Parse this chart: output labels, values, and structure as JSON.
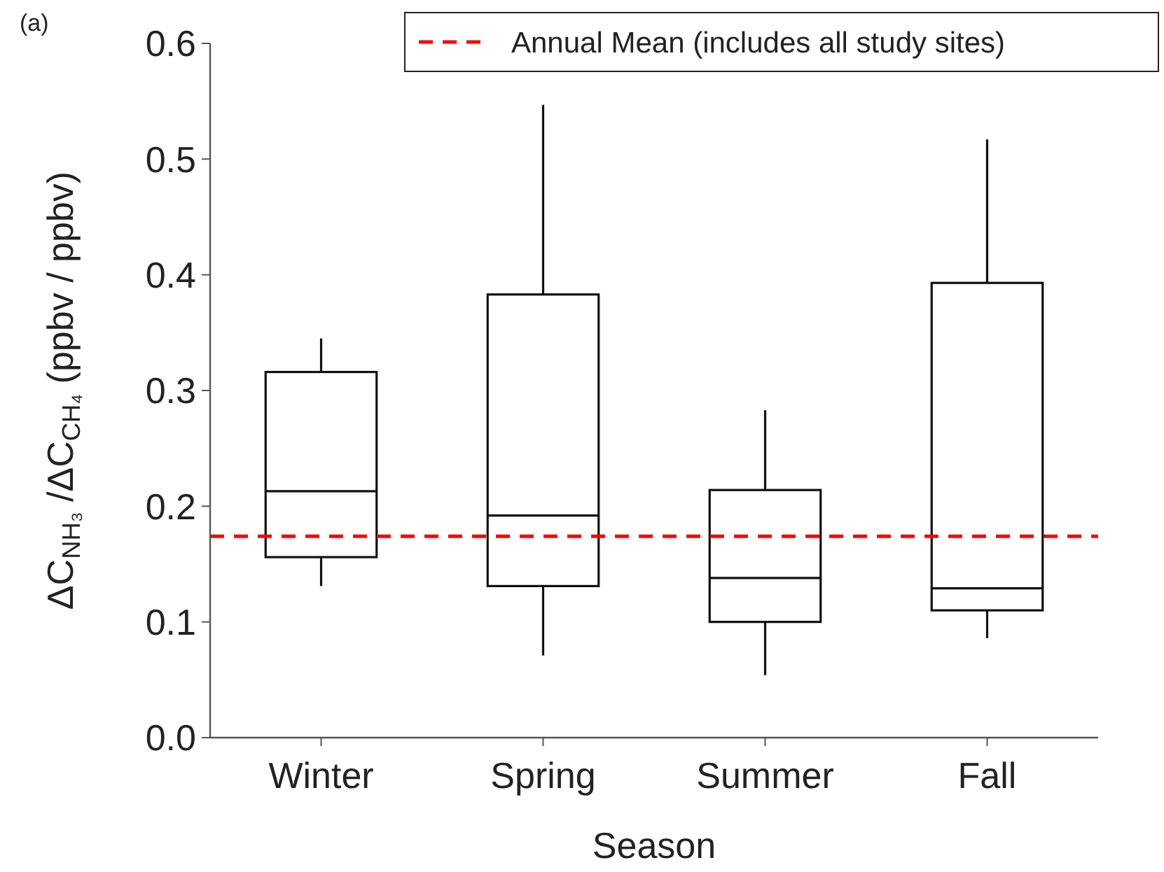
{
  "chart_data": {
    "type": "box",
    "xlabel": "Season",
    "ylabel": "ΔC$_{NH₃}$ /ΔC$_{CH₄}$ (ppbv / ppbv)",
    "annotations": [
      "(a)"
    ],
    "categories": [
      "Winter",
      "Spring",
      "Summer",
      "Fall"
    ],
    "boxes": [
      {
        "low": 0.131,
        "q1": 0.156,
        "median": 0.213,
        "q3": 0.316,
        "high": 0.345
      },
      {
        "low": 0.071,
        "q1": 0.131,
        "median": 0.192,
        "q3": 0.383,
        "high": 0.547
      },
      {
        "low": 0.054,
        "q1": 0.1,
        "median": 0.138,
        "q3": 0.214,
        "high": 0.283
      },
      {
        "low": 0.086,
        "q1": 0.11,
        "median": 0.129,
        "q3": 0.393,
        "high": 0.517
      }
    ],
    "ylim": [
      0,
      0.6
    ],
    "yticks": [
      {
        "value": 0,
        "label": "0.0"
      },
      0.1,
      0.2,
      0.3,
      0.4,
      0.5,
      0.6
    ],
    "ref_lines": [
      {
        "axis": "y",
        "value": 0.174,
        "label": "Annual Mean (includes all study sites)",
        "color": "#ff0000",
        "line_style": "dashed"
      }
    ],
    "legend": "top right",
    "grid": false
  }
}
